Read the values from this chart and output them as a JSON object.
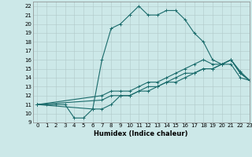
{
  "title": "",
  "xlabel": "Humidex (Indice chaleur)",
  "bg_color": "#cce8e8",
  "grid_color": "#b0c8c8",
  "line_color": "#1a6b6b",
  "xlim": [
    -0.5,
    23
  ],
  "ylim": [
    9,
    22.5
  ],
  "xticks": [
    0,
    1,
    2,
    3,
    4,
    5,
    6,
    7,
    8,
    9,
    10,
    11,
    12,
    13,
    14,
    15,
    16,
    17,
    18,
    19,
    20,
    21,
    22,
    23
  ],
  "yticks": [
    9,
    10,
    11,
    12,
    13,
    14,
    15,
    16,
    17,
    18,
    19,
    20,
    21,
    22
  ],
  "line1_x": [
    0,
    1,
    2,
    3,
    4,
    5,
    6,
    7,
    8,
    9,
    10,
    11,
    12,
    13,
    14,
    15,
    16,
    17,
    18,
    19,
    20,
    21,
    22,
    23
  ],
  "line1_y": [
    11,
    11,
    11,
    11,
    9.5,
    9.5,
    10.5,
    16,
    19.5,
    20,
    21,
    22,
    21,
    21,
    21.5,
    21.5,
    20.5,
    19,
    18,
    16,
    15.5,
    16,
    14.5,
    13.7
  ],
  "line2_x": [
    0,
    6,
    7,
    8,
    9,
    10,
    11,
    12,
    13,
    14,
    15,
    16,
    17,
    18,
    19,
    20,
    21,
    22,
    23
  ],
  "line2_y": [
    11,
    10.5,
    10.5,
    11,
    12,
    12,
    12.5,
    12.5,
    13,
    13.5,
    13.5,
    14,
    14.5,
    15,
    15,
    15.5,
    15.5,
    14,
    13.7
  ],
  "line3_x": [
    0,
    7,
    8,
    9,
    10,
    11,
    12,
    13,
    14,
    15,
    16,
    17,
    18,
    19,
    20,
    21,
    22,
    23
  ],
  "line3_y": [
    11,
    11.5,
    12,
    12,
    12,
    12.5,
    13,
    13,
    13.5,
    14,
    14.5,
    14.5,
    15,
    15,
    15.5,
    16,
    14.5,
    13.7
  ],
  "line4_x": [
    0,
    7,
    8,
    9,
    10,
    11,
    12,
    13,
    14,
    15,
    16,
    17,
    18,
    19,
    20,
    21,
    22,
    23
  ],
  "line4_y": [
    11,
    12,
    12.5,
    12.5,
    12.5,
    13,
    13.5,
    13.5,
    14,
    14.5,
    15,
    15.5,
    16,
    15.5,
    15.5,
    16,
    14.7,
    13.7
  ],
  "tick_fontsize": 5,
  "xlabel_fontsize": 6
}
